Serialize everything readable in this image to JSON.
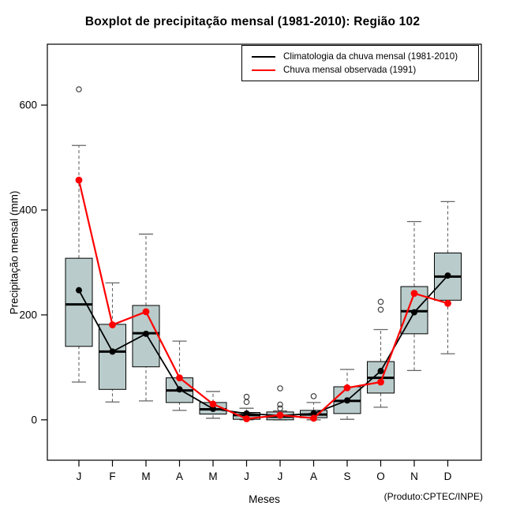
{
  "title": "Boxplot de precipitação mensal (1981-2010): Região 102",
  "footnote": "(Produto:CPTEC/INPE)",
  "chart_data": {
    "type": "boxplot",
    "categories": [
      "J",
      "F",
      "M",
      "A",
      "M",
      "J",
      "J",
      "A",
      "S",
      "O",
      "N",
      "D"
    ],
    "xlabel": "Meses",
    "ylabel": "Precipitação mensal (mm)",
    "yticks": [
      0,
      200,
      400,
      600
    ],
    "ylim": [
      -77,
      716
    ],
    "grid": false,
    "box_fill": "#b9cccb",
    "box_border": "#000000",
    "whisker_color": "#666666",
    "outlier_color": "#333333",
    "boxes": [
      {
        "month": "J",
        "whisker_low": 72,
        "q1": 140,
        "median": 220,
        "q3": 308,
        "whisker_high": 523,
        "outliers": [
          630
        ]
      },
      {
        "month": "F",
        "whisker_low": 34,
        "q1": 58,
        "median": 130,
        "q3": 182,
        "whisker_high": 261,
        "outliers": []
      },
      {
        "month": "M",
        "whisker_low": 36,
        "q1": 101,
        "median": 165,
        "q3": 218,
        "whisker_high": 354,
        "outliers": []
      },
      {
        "month": "A",
        "whisker_low": 18,
        "q1": 33,
        "median": 56,
        "q3": 80,
        "whisker_high": 150,
        "outliers": []
      },
      {
        "month": "M",
        "whisker_low": 3,
        "q1": 11,
        "median": 20,
        "q3": 33,
        "whisker_high": 54,
        "outliers": []
      },
      {
        "month": "J",
        "whisker_low": 0,
        "q1": 1,
        "median": 9,
        "q3": 14,
        "whisker_high": 22,
        "outliers": [
          34,
          44
        ]
      },
      {
        "month": "J",
        "whisker_low": 0,
        "q1": 0,
        "median": 6,
        "q3": 15,
        "whisker_high": 17,
        "outliers": [
          22,
          29,
          60
        ]
      },
      {
        "month": "A",
        "whisker_low": 0,
        "q1": 4,
        "median": 10,
        "q3": 18,
        "whisker_high": 33,
        "outliers": [
          45
        ]
      },
      {
        "month": "S",
        "whisker_low": 1,
        "q1": 12,
        "median": 36,
        "q3": 63,
        "whisker_high": 96,
        "outliers": []
      },
      {
        "month": "O",
        "whisker_low": 24,
        "q1": 51,
        "median": 80,
        "q3": 111,
        "whisker_high": 172,
        "outliers": [
          210,
          225
        ]
      },
      {
        "month": "N",
        "whisker_low": 94,
        "q1": 164,
        "median": 207,
        "q3": 254,
        "whisker_high": 378,
        "outliers": []
      },
      {
        "month": "D",
        "whisker_low": 126,
        "q1": 228,
        "median": 273,
        "q3": 318,
        "whisker_high": 416,
        "outliers": []
      }
    ],
    "series": [
      {
        "name": "Climatologia da chuva mensal (1981-2010)",
        "color": "#000000",
        "marker": "filled-circle",
        "values": [
          247,
          130,
          164,
          58,
          21,
          12,
          8,
          12,
          37,
          93,
          205,
          275
        ]
      },
      {
        "name": "Chuva mensal observada (1991)",
        "color": "#ff0000",
        "marker": "filled-circle",
        "values": [
          457,
          181,
          206,
          80,
          30,
          2,
          9,
          3,
          61,
          72,
          241,
          222
        ]
      }
    ],
    "legend_position": "top-right"
  }
}
